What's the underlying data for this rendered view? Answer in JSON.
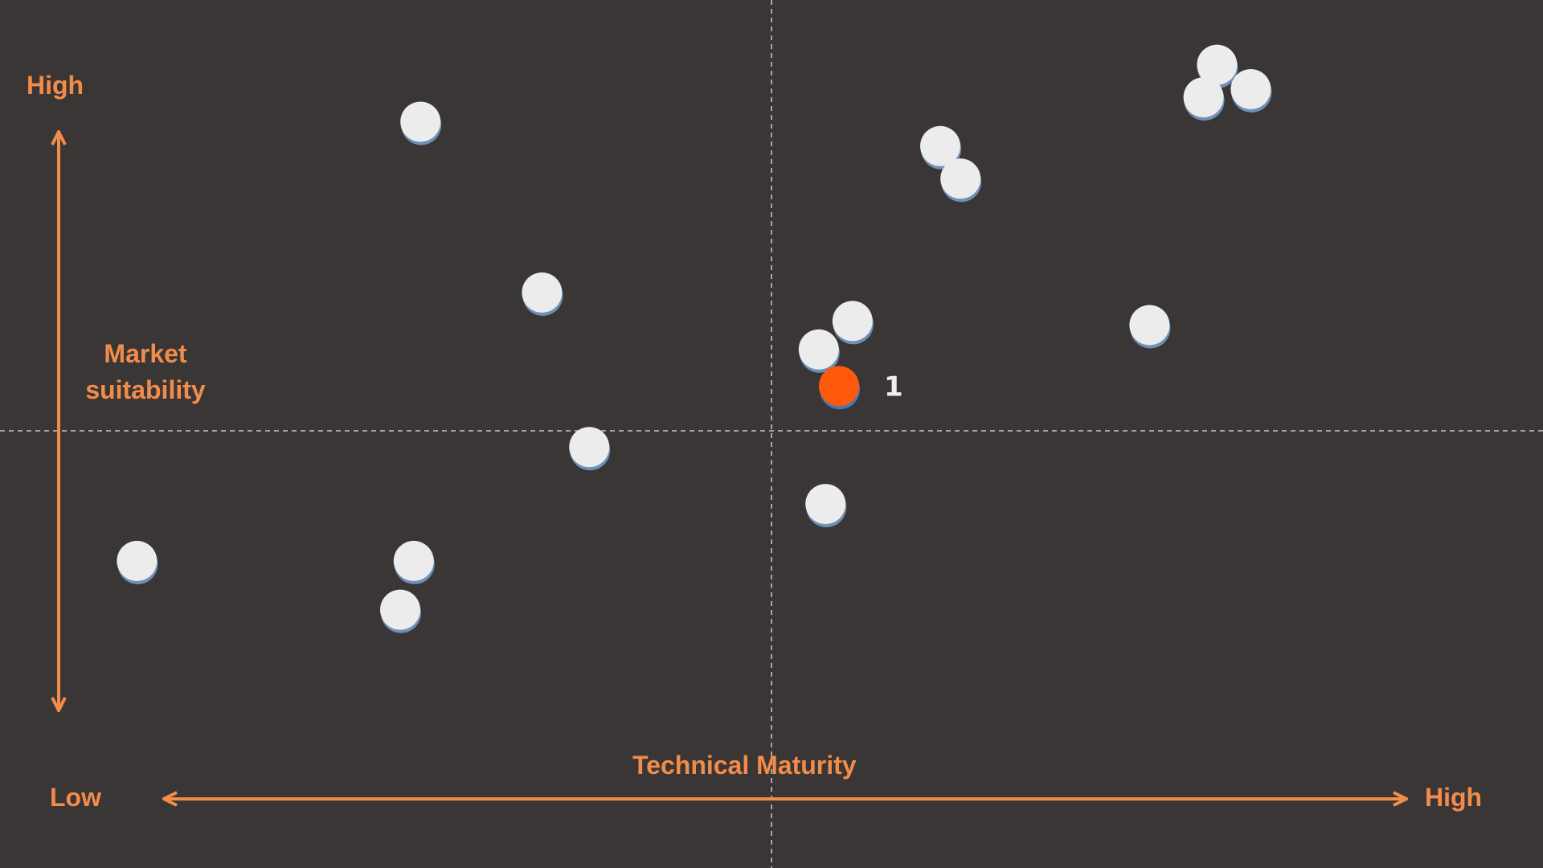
{
  "chart_data": {
    "type": "scatter",
    "title": "",
    "xlabel": "Technical Maturity",
    "ylabel": "Market suitability",
    "x_min_label": "Low",
    "x_max_label": "High",
    "y_max_label": "High",
    "xlim": [
      0,
      100
    ],
    "ylim": [
      0,
      100
    ],
    "grid": false,
    "quadrant_dividers": {
      "x": 50,
      "y": 50
    },
    "colors": {
      "background": "#3a3636",
      "accent": "#f28c4a",
      "highlight_point": "#ff5a0a",
      "point": "#ececec",
      "divider": "#a9a4a2",
      "label_text": "#f4ecec"
    },
    "points": [
      {
        "x": 3,
        "y": 34,
        "highlight": false,
        "label": ""
      },
      {
        "x": 24,
        "y": 88,
        "highlight": false,
        "label": ""
      },
      {
        "x": 23.5,
        "y": 34,
        "highlight": false,
        "label": ""
      },
      {
        "x": 22.5,
        "y": 28,
        "highlight": false,
        "label": ""
      },
      {
        "x": 33,
        "y": 67,
        "highlight": false,
        "label": ""
      },
      {
        "x": 36.5,
        "y": 48,
        "highlight": false,
        "label": ""
      },
      {
        "x": 53.5,
        "y": 60,
        "highlight": false,
        "label": ""
      },
      {
        "x": 56,
        "y": 63.5,
        "highlight": false,
        "label": ""
      },
      {
        "x": 55,
        "y": 55.5,
        "highlight": true,
        "label": "1"
      },
      {
        "x": 54,
        "y": 41,
        "highlight": false,
        "label": ""
      },
      {
        "x": 62.5,
        "y": 85,
        "highlight": false,
        "label": ""
      },
      {
        "x": 64,
        "y": 81,
        "highlight": false,
        "label": ""
      },
      {
        "x": 78,
        "y": 63,
        "highlight": false,
        "label": ""
      },
      {
        "x": 83,
        "y": 95,
        "highlight": false,
        "label": ""
      },
      {
        "x": 82,
        "y": 91,
        "highlight": false,
        "label": ""
      },
      {
        "x": 85.5,
        "y": 92,
        "highlight": false,
        "label": ""
      }
    ]
  }
}
